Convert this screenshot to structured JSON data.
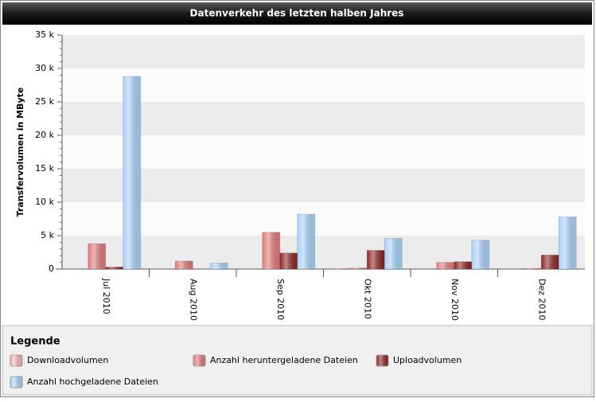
{
  "chart_data": {
    "type": "bar",
    "title": "Datenverkehr des letzten halben Jahres",
    "y_label": "Transfervolumen in MByte",
    "legend_title": "Legende",
    "categories": [
      "Jul 2010",
      "Aug 2010",
      "Sep 2010",
      "Okt 2010",
      "Nov 2010",
      "Dez 2010"
    ],
    "series": [
      {
        "name": "Downloadvolumen",
        "color": "#f7b3b3",
        "values": [
          0,
          0,
          0,
          100,
          0,
          0
        ]
      },
      {
        "name": "Anzahl heruntergeladene Dateien",
        "color": "#e27a7a",
        "values": [
          3800,
          1200,
          5500,
          150,
          1000,
          100
        ]
      },
      {
        "name": "Uploadvolumen",
        "color": "#8e2626",
        "values": [
          300,
          0,
          2400,
          2800,
          1100,
          2100
        ]
      },
      {
        "name": "Anzahl hochgeladene Dateien",
        "color": "#a9d2fa",
        "values": [
          28800,
          900,
          8200,
          4600,
          4300,
          7800
        ]
      }
    ],
    "ylim": [
      0,
      35000
    ],
    "yticks": [
      0,
      {
        "value": 5000,
        "label": "5 k"
      },
      {
        "value": 10000,
        "label": "10 k"
      },
      {
        "value": 15000,
        "label": "15 k"
      },
      {
        "value": 20000,
        "label": "20 k"
      },
      {
        "value": 25000,
        "label": "25 k"
      },
      {
        "value": 30000,
        "label": "30 k"
      },
      {
        "value": 35000,
        "label": "35 k"
      }
    ],
    "grid": true
  }
}
